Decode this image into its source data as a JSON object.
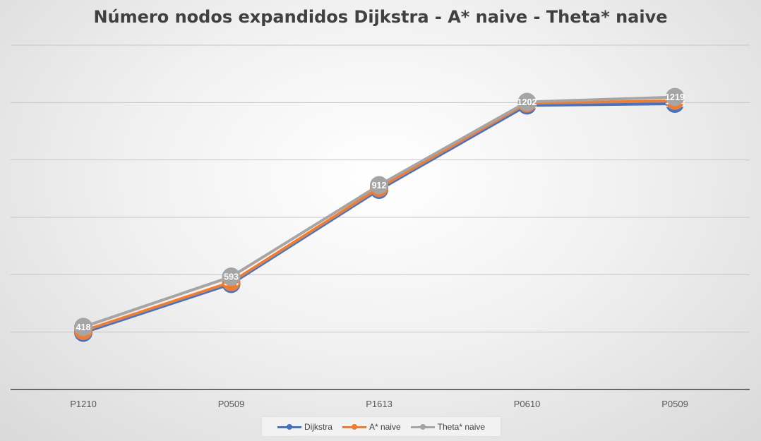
{
  "chart_data": {
    "type": "line",
    "title": "Número nodos expandidos Dijkstra - A* naive - Theta* naive",
    "xlabel": "",
    "ylabel": "",
    "categories": [
      "P1210",
      "P0509",
      "P1613",
      "P0610",
      "P0509"
    ],
    "ylim": [
      200,
      1400
    ],
    "grid": true,
    "legend_position": "bottom",
    "series": [
      {
        "name": "Dijkstra",
        "color": "#4472C4",
        "values": [
          398,
          568,
          896,
          1190,
          1196
        ]
      },
      {
        "name": "A* naive",
        "color": "#ED7D31",
        "values": [
          404,
          574,
          902,
          1197,
          1206
        ]
      },
      {
        "name": "Theta* naive",
        "color": "#A5A5A5",
        "values": [
          418,
          593,
          912,
          1202,
          1219
        ]
      }
    ]
  }
}
